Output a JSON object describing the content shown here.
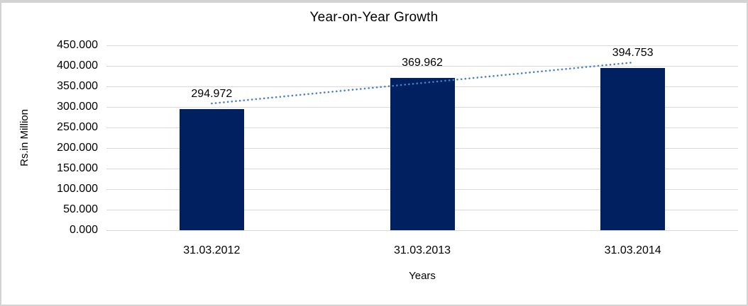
{
  "frame": {
    "border_color": "#d3d3d3",
    "background_color": "#ffffff"
  },
  "chart_data": {
    "type": "bar",
    "title": "Year-on-Year Growth",
    "xlabel": "Years",
    "ylabel": "Rs.in Million",
    "categories": [
      "31.03.2012",
      "31.03.2013",
      "31.03.2014"
    ],
    "values": [
      294.972,
      369.962,
      394.753
    ],
    "value_labels": [
      "294.972",
      "369.962",
      "394.753"
    ],
    "ylim": [
      0,
      450
    ],
    "ytick_interval": 50,
    "ytick_labels": [
      "0.000",
      "50.000",
      "100.000",
      "150.000",
      "200.000",
      "250.000",
      "300.000",
      "350.000",
      "400.000",
      "450.000"
    ],
    "grid": true,
    "legend": "none",
    "bar_color": "#002060",
    "gridline_color": "#d9d9d9",
    "text_color": "#000000",
    "trendline": {
      "type": "linear",
      "style": "dotted",
      "color": "#4a80c4"
    }
  }
}
